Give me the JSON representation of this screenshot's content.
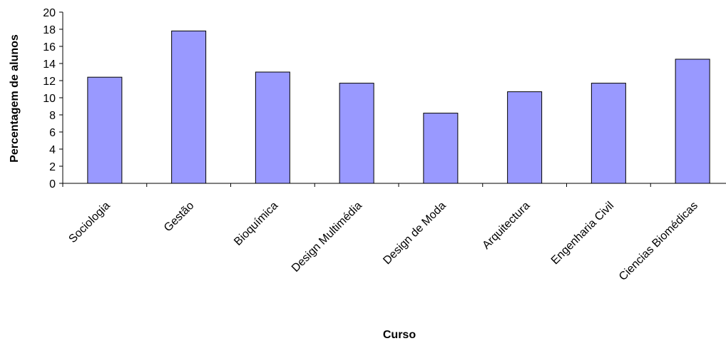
{
  "chart_data": {
    "type": "bar",
    "title": "",
    "xlabel": "Curso",
    "ylabel": "Percentagem de alunos",
    "categories": [
      "Sociologia",
      "Gestão",
      "Bioquímica",
      "Design Multimédia",
      "Design de Moda",
      "Arquitectura",
      "Engenharia Civil",
      "Ciencias Biomédicas"
    ],
    "values": [
      12.4,
      17.8,
      13.0,
      11.7,
      8.2,
      10.7,
      11.7,
      14.5
    ],
    "ylim": [
      0,
      20
    ],
    "yticks": [
      "0",
      "2",
      "4",
      "6",
      "8",
      "10",
      "12",
      "14",
      "16",
      "18",
      "20"
    ],
    "grid": false,
    "legend": "none",
    "bar_color": "#9999ff",
    "bar_edge_color": "#000000"
  }
}
